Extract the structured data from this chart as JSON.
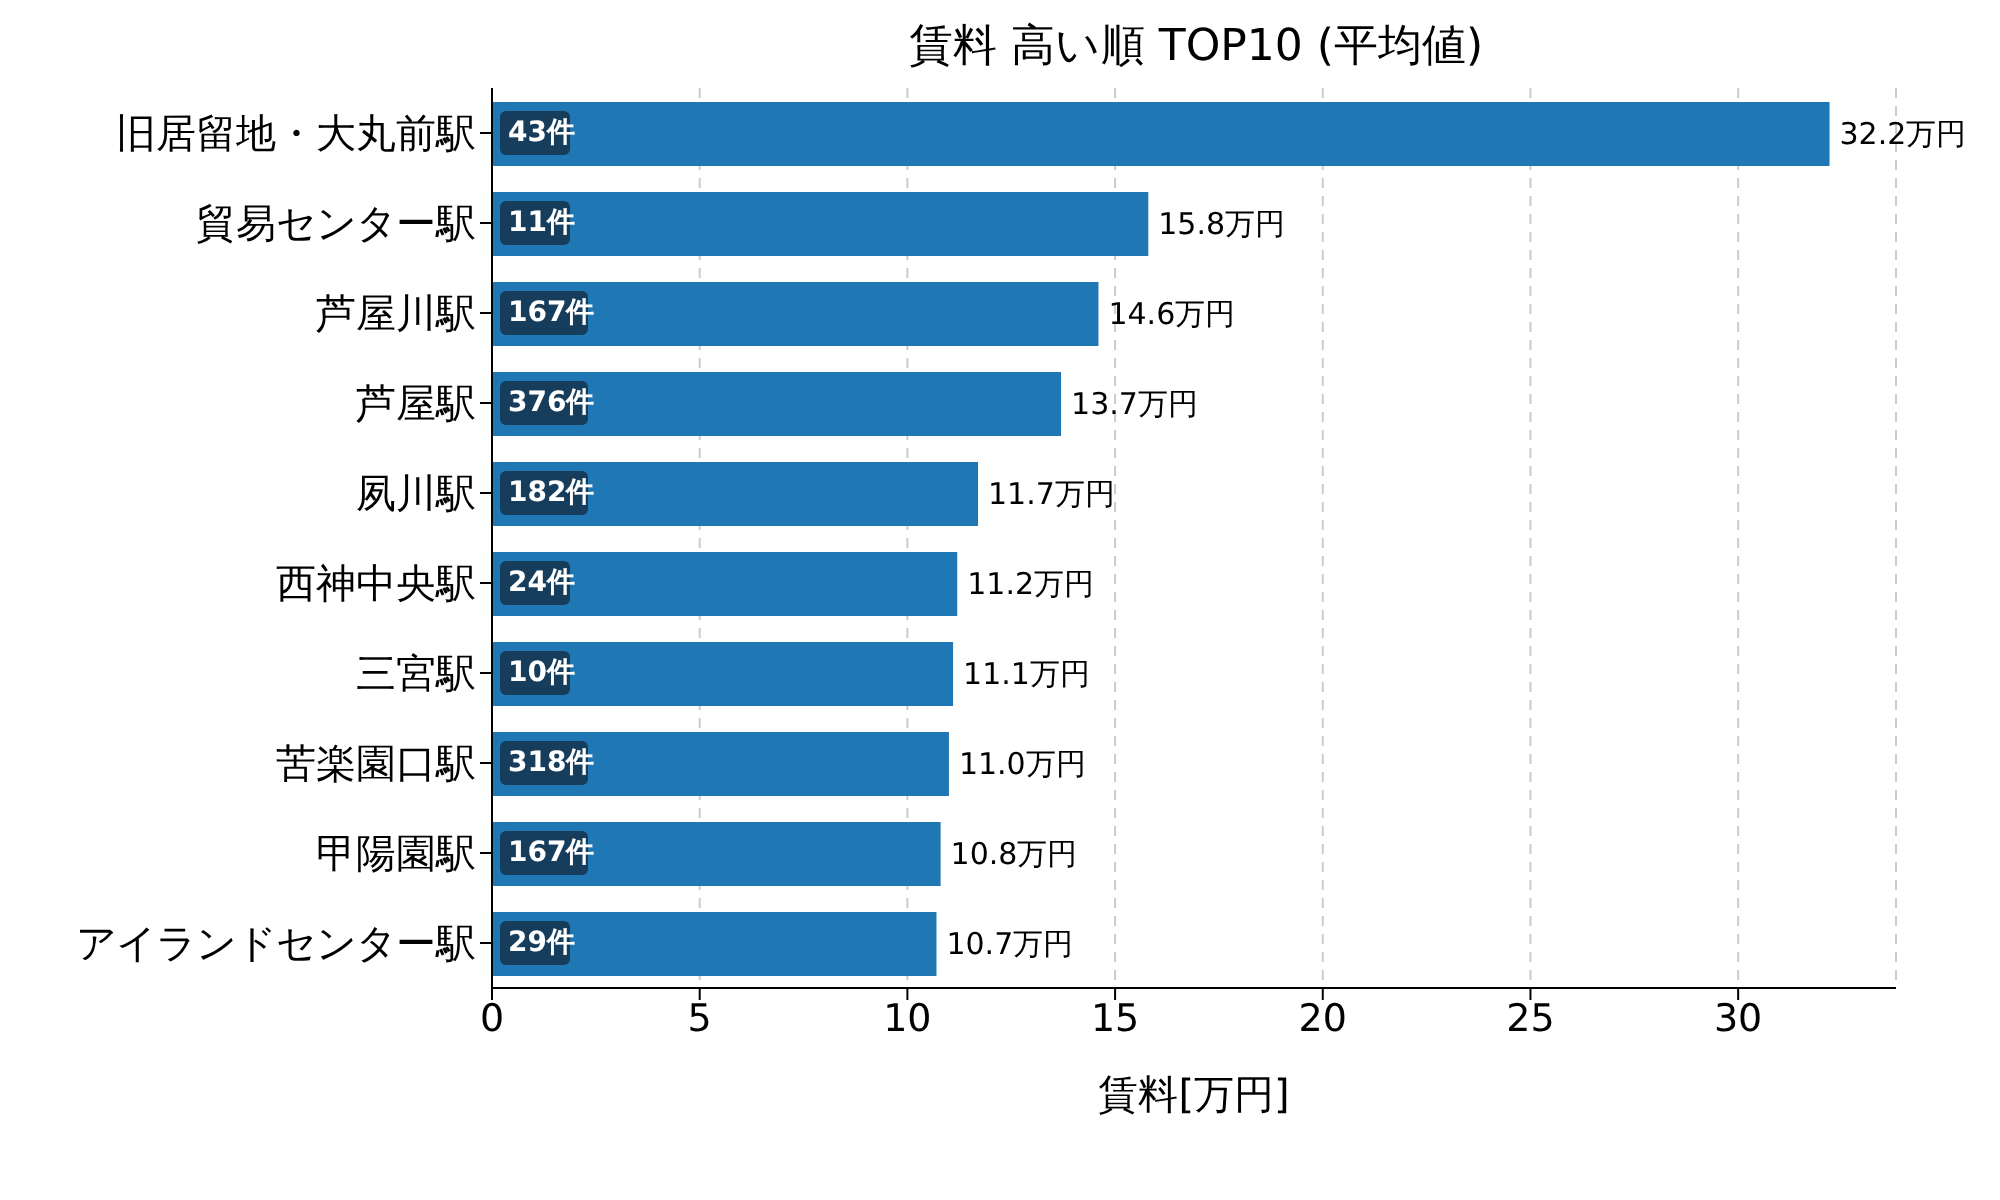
{
  "chart_data": {
    "type": "bar",
    "orientation": "horizontal",
    "title": "賃料 高い順 TOP10 (平均値)",
    "xlabel": "賃料[万円]",
    "categories": [
      "旧居留地・大丸前駅",
      "貿易センター駅",
      "芦屋川駅",
      "芦屋駅",
      "夙川駅",
      "西神中央駅",
      "三宮駅",
      "苦楽園口駅",
      "甲陽園駅",
      "アイランドセンター駅"
    ],
    "values": [
      32.2,
      15.8,
      14.6,
      13.7,
      11.7,
      11.2,
      11.1,
      11.0,
      10.8,
      10.7
    ],
    "value_labels": [
      "32.2万円",
      "15.8万円",
      "14.6万円",
      "13.7万円",
      "11.7万円",
      "11.2万円",
      "11.1万円",
      "11.0万円",
      "10.8万円",
      "10.7万円"
    ],
    "color": "#1f77b4",
    "xlim": [
      0,
      33.8
    ],
    "xticks": [
      0,
      5,
      10,
      15,
      20,
      25,
      30
    ],
    "grid": "x",
    "annotations": [
      {
        "text": "43件",
        "y": "旧居留地・大丸前駅"
      },
      {
        "text": "11件",
        "y": "貿易センター駅"
      },
      {
        "text": "167件",
        "y": "芦屋川駅"
      },
      {
        "text": "376件",
        "y": "芦屋駅"
      },
      {
        "text": "182件",
        "y": "夙川駅"
      },
      {
        "text": "24件",
        "y": "西神中央駅"
      },
      {
        "text": "10件",
        "y": "三宮駅"
      },
      {
        "text": "318件",
        "y": "苦楽園口駅"
      },
      {
        "text": "167件",
        "y": "甲陽園駅"
      },
      {
        "text": "29件",
        "y": "アイランドセンター駅"
      }
    ]
  }
}
